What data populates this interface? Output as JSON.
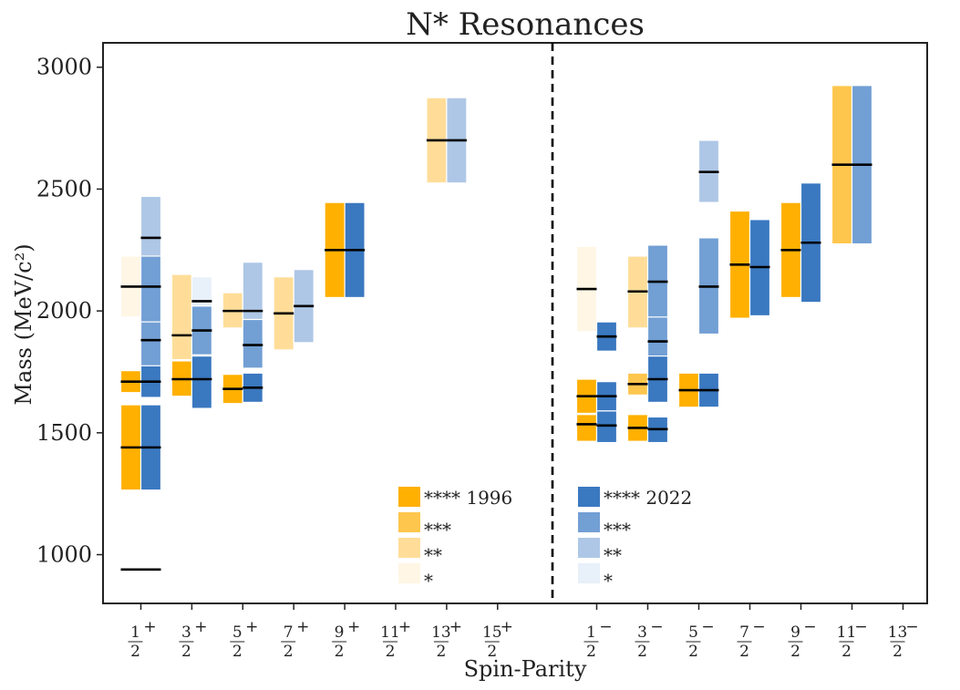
{
  "chart_data": {
    "type": "bar",
    "title": "N* Resonances",
    "xlabel": "Spin-Parity",
    "ylabel": "Mass (MeV/c²)",
    "ylim": [
      800,
      3100
    ],
    "yticks": [
      1000,
      1500,
      2000,
      2500,
      3000
    ],
    "categories": [
      {
        "num": "1",
        "den": "2",
        "parity": "+"
      },
      {
        "num": "3",
        "den": "2",
        "parity": "+"
      },
      {
        "num": "5",
        "den": "2",
        "parity": "+"
      },
      {
        "num": "7",
        "den": "2",
        "parity": "+"
      },
      {
        "num": "9",
        "den": "2",
        "parity": "+"
      },
      {
        "num": "11",
        "den": "2",
        "parity": "+"
      },
      {
        "num": "13",
        "den": "2",
        "parity": "+"
      },
      {
        "num": "15",
        "den": "2",
        "parity": "+"
      },
      {
        "num": "1",
        "den": "2",
        "parity": "−"
      },
      {
        "num": "3",
        "den": "2",
        "parity": "−"
      },
      {
        "num": "5",
        "den": "2",
        "parity": "−"
      },
      {
        "num": "7",
        "den": "2",
        "parity": "−"
      },
      {
        "num": "9",
        "den": "2",
        "parity": "−"
      },
      {
        "num": "11",
        "den": "2",
        "parity": "−"
      },
      {
        "num": "13",
        "den": "2",
        "parity": "−"
      }
    ],
    "series": [
      {
        "name": "1996",
        "colors": {
          "4": "#ffb000",
          "3": "#ffc64d",
          "2": "#ffdd99",
          "1": "#fff6e5"
        },
        "resonances": [
          {
            "cat": 0,
            "mass": 939,
            "stars": 4,
            "lo": 939,
            "hi": 939
          },
          {
            "cat": 0,
            "mass": 1440,
            "stars": 4,
            "lo": 1265,
            "hi": 1615
          },
          {
            "cat": 0,
            "mass": 1710,
            "stars": 4,
            "lo": 1665,
            "hi": 1755
          },
          {
            "cat": 0,
            "mass": 2100,
            "stars": 1,
            "lo": 1975,
            "hi": 2225
          },
          {
            "cat": 1,
            "mass": 1720,
            "stars": 4,
            "lo": 1650,
            "hi": 1795
          },
          {
            "cat": 1,
            "mass": 1900,
            "stars": 2,
            "lo": 1800,
            "hi": 2150
          },
          {
            "cat": 2,
            "mass": 1680,
            "stars": 4,
            "lo": 1620,
            "hi": 1740
          },
          {
            "cat": 2,
            "mass": 2000,
            "stars": 2,
            "lo": 1930,
            "hi": 2075
          },
          {
            "cat": 3,
            "mass": 1990,
            "stars": 2,
            "lo": 1840,
            "hi": 2140
          },
          {
            "cat": 4,
            "mass": 2250,
            "stars": 4,
            "lo": 2055,
            "hi": 2445
          },
          {
            "cat": 6,
            "mass": 2700,
            "stars": 2,
            "lo": 2525,
            "hi": 2875
          },
          {
            "cat": 8,
            "mass": 1535,
            "stars": 4,
            "lo": 1465,
            "hi": 1575
          },
          {
            "cat": 8,
            "mass": 1650,
            "stars": 4,
            "lo": 1580,
            "hi": 1720
          },
          {
            "cat": 8,
            "mass": 2090,
            "stars": 1,
            "lo": 1915,
            "hi": 2265
          },
          {
            "cat": 9,
            "mass": 1520,
            "stars": 4,
            "lo": 1465,
            "hi": 1575
          },
          {
            "cat": 9,
            "mass": 1700,
            "stars": 3,
            "lo": 1655,
            "hi": 1745
          },
          {
            "cat": 9,
            "mass": 2080,
            "stars": 2,
            "lo": 1930,
            "hi": 2225
          },
          {
            "cat": 10,
            "mass": 1675,
            "stars": 4,
            "lo": 1605,
            "hi": 1745
          },
          {
            "cat": 11,
            "mass": 2190,
            "stars": 4,
            "lo": 1970,
            "hi": 2410
          },
          {
            "cat": 12,
            "mass": 2250,
            "stars": 4,
            "lo": 2055,
            "hi": 2445
          },
          {
            "cat": 13,
            "mass": 2600,
            "stars": 3,
            "lo": 2275,
            "hi": 2925
          }
        ]
      },
      {
        "name": "2022",
        "colors": {
          "4": "#3a78c0",
          "3": "#729fd4",
          "2": "#aec7e6",
          "1": "#e8f0f9"
        },
        "resonances": [
          {
            "cat": 0,
            "mass": 939,
            "stars": 4,
            "lo": 939,
            "hi": 939
          },
          {
            "cat": 0,
            "mass": 1440,
            "stars": 4,
            "lo": 1265,
            "hi": 1615
          },
          {
            "cat": 0,
            "mass": 1710,
            "stars": 4,
            "lo": 1645,
            "hi": 1775
          },
          {
            "cat": 0,
            "mass": 1880,
            "stars": 3,
            "lo": 1735,
            "hi": 2025
          },
          {
            "cat": 0,
            "mass": 2100,
            "stars": 3,
            "lo": 1955,
            "hi": 2225
          },
          {
            "cat": 0,
            "mass": 2300,
            "stars": 2,
            "lo": 2130,
            "hi": 2470
          },
          {
            "cat": 1,
            "mass": 1720,
            "stars": 4,
            "lo": 1600,
            "hi": 1815
          },
          {
            "cat": 1,
            "mass": 1920,
            "stars": 3,
            "lo": 1820,
            "hi": 2020
          },
          {
            "cat": 1,
            "mass": 2040,
            "stars": 1,
            "lo": 1935,
            "hi": 2140
          },
          {
            "cat": 2,
            "mass": 1685,
            "stars": 4,
            "lo": 1625,
            "hi": 1745
          },
          {
            "cat": 2,
            "mass": 1860,
            "stars": 3,
            "lo": 1765,
            "hi": 1965
          },
          {
            "cat": 2,
            "mass": 2000,
            "stars": 2,
            "lo": 1800,
            "hi": 2200
          },
          {
            "cat": 3,
            "mass": 2020,
            "stars": 2,
            "lo": 1870,
            "hi": 2170
          },
          {
            "cat": 4,
            "mass": 2250,
            "stars": 4,
            "lo": 2055,
            "hi": 2445
          },
          {
            "cat": 6,
            "mass": 2700,
            "stars": 2,
            "lo": 2525,
            "hi": 2875
          },
          {
            "cat": 8,
            "mass": 1530,
            "stars": 4,
            "lo": 1460,
            "hi": 1590
          },
          {
            "cat": 8,
            "mass": 1650,
            "stars": 4,
            "lo": 1590,
            "hi": 1710
          },
          {
            "cat": 8,
            "mass": 1895,
            "stars": 4,
            "lo": 1835,
            "hi": 1955
          },
          {
            "cat": 9,
            "mass": 1515,
            "stars": 4,
            "lo": 1460,
            "hi": 1565
          },
          {
            "cat": 9,
            "mass": 1720,
            "stars": 4,
            "lo": 1625,
            "hi": 1815
          },
          {
            "cat": 9,
            "mass": 1875,
            "stars": 3,
            "lo": 1770,
            "hi": 1980
          },
          {
            "cat": 9,
            "mass": 2120,
            "stars": 3,
            "lo": 1975,
            "hi": 2270
          },
          {
            "cat": 10,
            "mass": 1675,
            "stars": 4,
            "lo": 1605,
            "hi": 1745
          },
          {
            "cat": 10,
            "mass": 2100,
            "stars": 3,
            "lo": 1905,
            "hi": 2300
          },
          {
            "cat": 10,
            "mass": 2570,
            "stars": 2,
            "lo": 2445,
            "hi": 2700
          },
          {
            "cat": 11,
            "mass": 2180,
            "stars": 4,
            "lo": 1980,
            "hi": 2375
          },
          {
            "cat": 12,
            "mass": 2280,
            "stars": 4,
            "lo": 2035,
            "hi": 2525
          },
          {
            "cat": 13,
            "mass": 2600,
            "stars": 3,
            "lo": 2275,
            "hi": 2925
          }
        ]
      }
    ],
    "legend": [
      {
        "series": "1996",
        "placement": "lower-center-left",
        "entries": [
          {
            "stars": 4,
            "label": "**** 1996"
          },
          {
            "stars": 3,
            "label": "***"
          },
          {
            "stars": 2,
            "label": "**"
          },
          {
            "stars": 1,
            "label": "*"
          }
        ]
      },
      {
        "series": "2022",
        "placement": "lower-center-right",
        "entries": [
          {
            "stars": 4,
            "label": "**** 2022"
          },
          {
            "stars": 3,
            "label": "***"
          },
          {
            "stars": 2,
            "label": "**"
          },
          {
            "stars": 1,
            "label": "*"
          }
        ]
      }
    ],
    "grid": false
  }
}
